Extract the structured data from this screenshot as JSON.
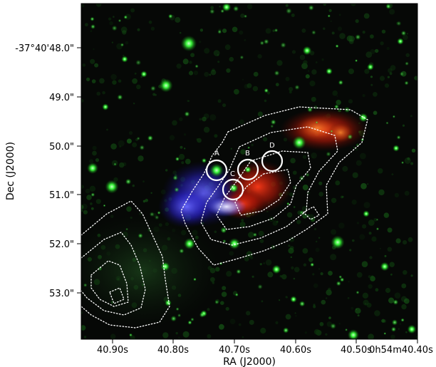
{
  "figure": {
    "x_axis_label": "RA (J2000)",
    "y_axis_label": "Dec (J2000)",
    "x_ticks": [
      "40.90s",
      "40.80s",
      "40.70s",
      "40.60s",
      "40.50s",
      "0h54m40.40s"
    ],
    "y_ticks": [
      "-37°40'48.0\"",
      "49.0\"",
      "50.0\"",
      "51.0\"",
      "52.0\"",
      "53.0\""
    ],
    "sources": [
      {
        "label": "A"
      },
      {
        "label": "B"
      },
      {
        "label": "C"
      },
      {
        "label": "D"
      }
    ],
    "colors": {
      "background": "#060806",
      "star": "#3cff3c",
      "red_emission": "#ff2a10",
      "blue_emission": "#3a3cff",
      "contours": "#ffffff"
    }
  }
}
